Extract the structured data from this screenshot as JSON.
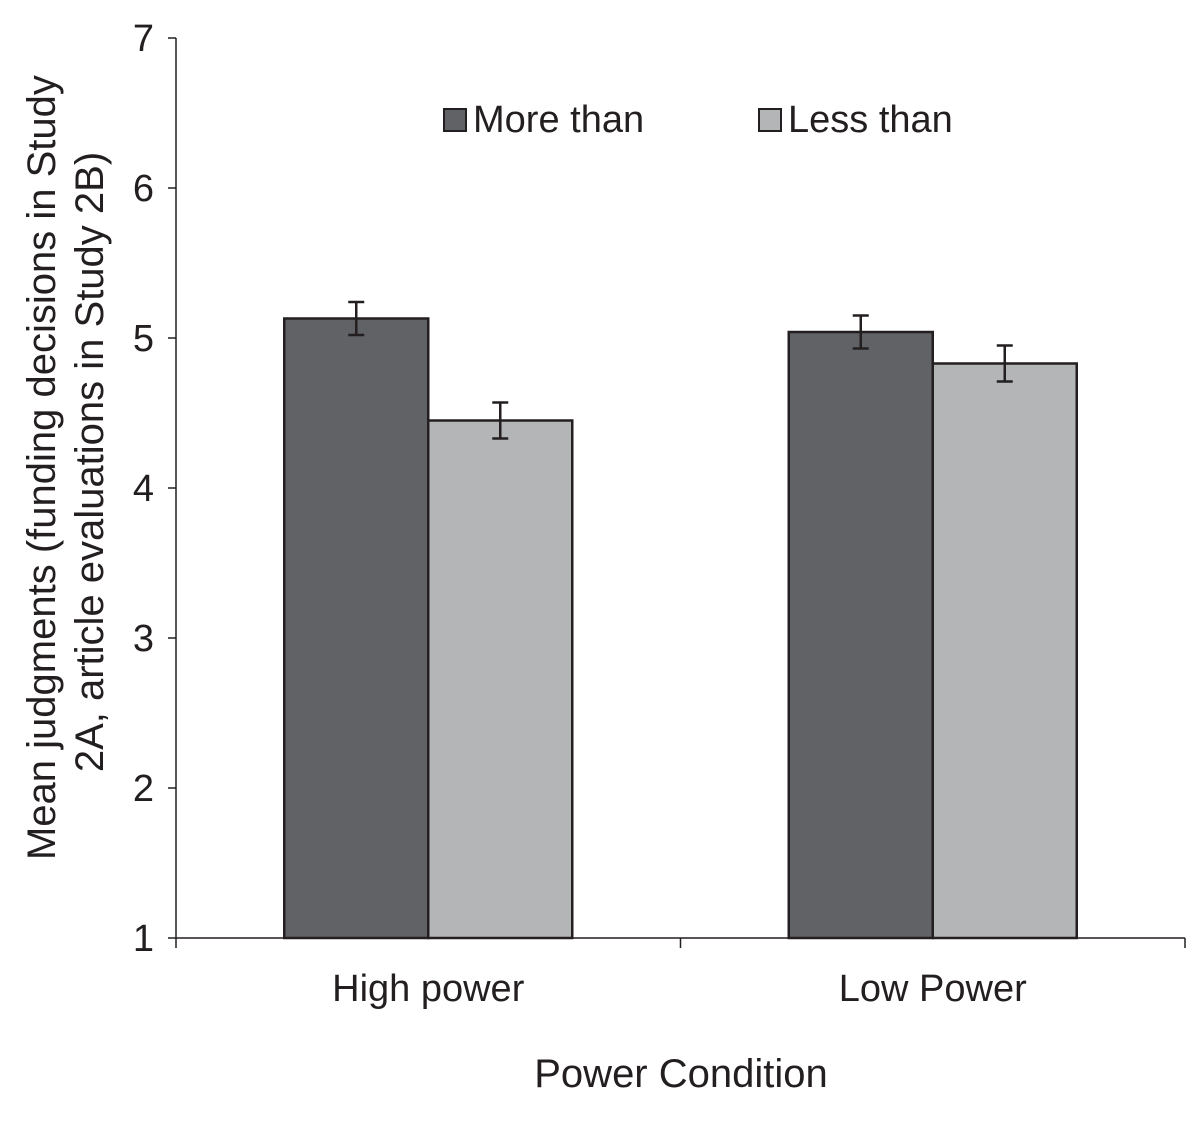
{
  "chart_data": {
    "type": "bar",
    "title": "",
    "xlabel": "Power Condition",
    "ylabel_lines": [
      "Mean judgments (funding decisions in Study",
      "2A, article evaluations in Study 2B)"
    ],
    "ylim": [
      1,
      7
    ],
    "yticks": [
      "1",
      "2",
      "3",
      "4",
      "5",
      "6",
      "7"
    ],
    "categories": [
      "High power",
      "Low Power"
    ],
    "series": [
      {
        "name": "More than",
        "color": "#616265",
        "values": [
          5.13,
          5.04
        ],
        "errors": [
          0.11,
          0.11
        ]
      },
      {
        "name": "Less than",
        "color": "#b4b5b7",
        "values": [
          4.45,
          4.83
        ],
        "errors": [
          0.12,
          0.12
        ]
      }
    ],
    "legend_position": "top",
    "grid": false
  }
}
